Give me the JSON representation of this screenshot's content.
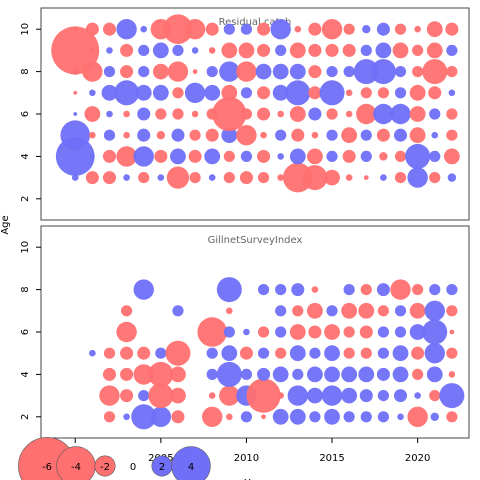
{
  "chart_data": {
    "type": "scatter",
    "subtype": "bubble",
    "ylabel": "Age",
    "xlabel": "Year",
    "xlim": [
      1998,
      2023
    ],
    "ylim": [
      1,
      11
    ],
    "x_ticks": [
      2000,
      2005,
      2010,
      2015,
      2020
    ],
    "y_ticks": [
      2,
      4,
      6,
      8,
      10
    ],
    "colors": {
      "negative": "#ff7070",
      "positive": "#6f6ff8"
    },
    "legend": {
      "position": "bottom-left",
      "values": [
        -6,
        -4,
        -2,
        0,
        2,
        4
      ],
      "labels": [
        "-6",
        "-4",
        "-2",
        "0",
        "2",
        "4"
      ]
    },
    "panels": [
      {
        "title": "Residual catch",
        "years": [
          2000,
          2001,
          2002,
          2003,
          2004,
          2005,
          2006,
          2007,
          2008,
          2009,
          2010,
          2011,
          2012,
          2013,
          2014,
          2015,
          2016,
          2017,
          2018,
          2019,
          2020,
          2021,
          2022
        ],
        "ages": [
          3,
          4,
          5,
          6,
          7,
          8,
          9,
          10
        ],
        "residuals": [
          [
            0.5,
            -1.2,
            -1.2,
            0.5,
            -1.0,
            0.5,
            -2.2,
            -1.0,
            0.5,
            -1.0,
            -1.2,
            -1.0,
            -0.5,
            -3.0,
            -2.5,
            -1.5,
            -0.5,
            -0.3,
            0.5,
            -1.0,
            2.0,
            -1.0,
            0.7
          ],
          [
            4.0,
            0.3,
            -1.2,
            -2.0,
            2.0,
            -1.2,
            1.5,
            -1.2,
            1.5,
            -1.0,
            1.0,
            -1.2,
            0.5,
            1.5,
            -1.5,
            1.0,
            -1.2,
            1.0,
            -0.7,
            -1.0,
            2.5,
            1.0,
            -1.5
          ],
          [
            3.0,
            -0.5,
            1.0,
            -0.5,
            1.2,
            -0.7,
            1.2,
            -1.0,
            -1.2,
            1.5,
            -2.0,
            -0.5,
            1.0,
            -1.2,
            -0.5,
            1.0,
            -1.5,
            1.0,
            -1.2,
            1.2,
            -1.5,
            0.5,
            -1.0
          ],
          [
            0.2,
            -1.5,
            0.5,
            -0.5,
            1.2,
            -1.0,
            -1.0,
            -0.5,
            -1.0,
            -3.5,
            -1.0,
            -1.2,
            -0.5,
            -1.5,
            1.2,
            -1.0,
            -0.5,
            -2.0,
            2.0,
            2.0,
            -1.5,
            1.0,
            -1.0
          ],
          [
            -0.2,
            0.5,
            1.5,
            2.5,
            1.5,
            1.5,
            -1.0,
            2.0,
            1.5,
            -1.5,
            1.0,
            -1.2,
            1.5,
            2.5,
            -1.2,
            2.5,
            -0.5,
            -1.0,
            -1.0,
            1.0,
            -1.5,
            -1.2,
            0.5
          ],
          [
            -0.5,
            -2.0,
            1.0,
            -1.2,
            1.0,
            -1.5,
            -2.0,
            -0.3,
            1.0,
            2.0,
            -2.0,
            1.5,
            1.5,
            1.5,
            -1.2,
            1.0,
            1.0,
            2.5,
            2.5,
            1.0,
            -1.0,
            -2.5,
            -1.0
          ],
          [
            -5.0,
            -0.3,
            0.5,
            -1.2,
            1.0,
            1.5,
            1.0,
            0.5,
            -0.5,
            -1.5,
            -1.5,
            -1.2,
            1.0,
            -1.5,
            -1.2,
            -1.2,
            -1.2,
            1.0,
            1.5,
            -1.5,
            -1.0,
            -1.5,
            1.0
          ],
          [
            -0.3,
            -1.2,
            -1.2,
            2.0,
            0.5,
            -2.0,
            -3.0,
            -2.0,
            -1.2,
            1.0,
            1.0,
            -1.2,
            2.0,
            -0.5,
            -1.2,
            -2.0,
            -1.0,
            0.7,
            1.2,
            -1.0,
            -0.5,
            -1.5,
            -1.2
          ]
        ]
      },
      {
        "title": "GillnetSurveyIndex",
        "years": [
          2001,
          2002,
          2003,
          2004,
          2005,
          2006,
          2007,
          2008,
          2009,
          2010,
          2011,
          2012,
          2013,
          2014,
          2015,
          2016,
          2017,
          2018,
          2019,
          2020,
          2021,
          2022
        ],
        "ages": [
          2,
          3,
          4,
          5,
          6,
          7,
          8
        ],
        "residuals": [
          [
            null,
            -1.0,
            0.5,
            2.5,
            2.0,
            -1.2,
            null,
            -2.0,
            -0.5,
            1.0,
            -0.3,
            1.5,
            1.5,
            1.0,
            1.5,
            1.0,
            1.0,
            1.0,
            0.5,
            -2.0,
            0.7,
            -1.0
          ],
          [
            null,
            -2.0,
            -1.2,
            1.0,
            -2.5,
            -1.5,
            null,
            -0.5,
            -2.0,
            2.0,
            -3.5,
            -0.5,
            2.0,
            1.5,
            2.0,
            1.5,
            1.2,
            1.0,
            1.2,
            0.5,
            -1.0,
            2.5
          ],
          [
            null,
            -1.2,
            -1.2,
            -2.0,
            -2.5,
            -1.5,
            null,
            1.0,
            2.5,
            1.0,
            1.2,
            1.5,
            1.0,
            1.5,
            1.5,
            1.5,
            1.5,
            1.2,
            1.5,
            -1.0,
            1.5,
            -0.5
          ],
          [
            0.5,
            -1.0,
            -1.2,
            -1.2,
            1.0,
            -2.5,
            null,
            1.0,
            1.5,
            -1.2,
            1.0,
            -1.0,
            1.5,
            1.0,
            1.5,
            -1.0,
            -1.0,
            1.0,
            1.5,
            -1.2,
            2.0,
            -1.0
          ],
          [
            null,
            null,
            -2.0,
            null,
            null,
            null,
            null,
            -3.0,
            1.0,
            0.5,
            -1.0,
            1.0,
            -1.5,
            -1.2,
            -1.5,
            -1.0,
            -1.2,
            1.0,
            1.0,
            1.5,
            2.5,
            -0.3
          ],
          [
            null,
            null,
            -1.0,
            null,
            null,
            1.0,
            null,
            null,
            -0.5,
            null,
            null,
            1.0,
            -1.0,
            -1.5,
            1.0,
            -1.5,
            -1.5,
            -1.0,
            1.0,
            -1.5,
            2.0,
            -1.0
          ],
          [
            null,
            null,
            null,
            2.0,
            null,
            null,
            null,
            null,
            2.5,
            null,
            1.0,
            1.0,
            1.2,
            -0.5,
            null,
            1.0,
            -1.0,
            1.2,
            -2.0,
            -1.0,
            1.0,
            1.0
          ]
        ]
      }
    ]
  }
}
